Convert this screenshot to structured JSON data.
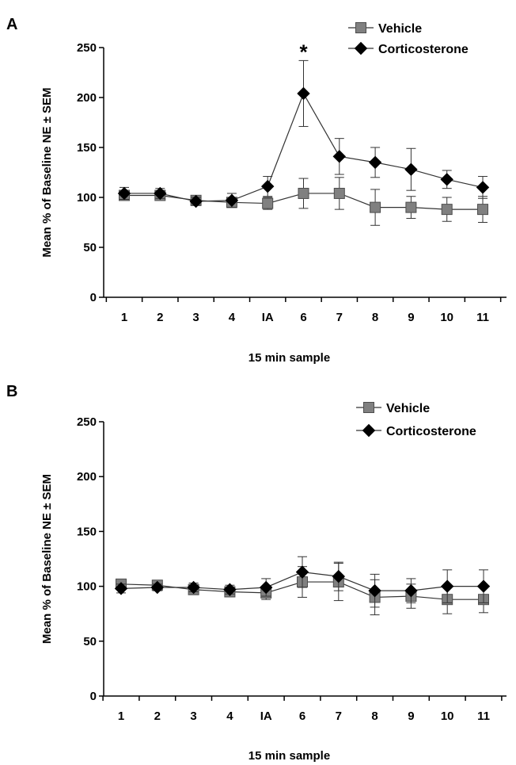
{
  "chart_data": [
    {
      "type": "line",
      "panel": "A",
      "categories": [
        "1",
        "2",
        "3",
        "4",
        "IA",
        "6",
        "7",
        "8",
        "9",
        "10",
        "11"
      ],
      "ylabel": "Mean % of Baseline NE ± SEM",
      "xlabel": "15 min sample",
      "ylim": [
        0,
        250
      ],
      "yticks": [
        0,
        50,
        100,
        150,
        200,
        250
      ],
      "legend_position": "top-right",
      "series": [
        {
          "name": "Vehicle",
          "marker": "square",
          "color": "#808080",
          "values": [
            102,
            102,
            97,
            95,
            94,
            104,
            104,
            90,
            90,
            88,
            88
          ],
          "errors": [
            4,
            4,
            4,
            5,
            6,
            15,
            16,
            18,
            11,
            12,
            13
          ]
        },
        {
          "name": "Corticosterone",
          "marker": "diamond",
          "color": "#000000",
          "values": [
            104,
            104,
            96,
            97,
            111,
            204,
            141,
            135,
            128,
            118,
            110
          ],
          "errors": [
            6,
            5,
            4,
            7,
            10,
            33,
            18,
            15,
            21,
            9,
            11
          ]
        }
      ],
      "annotations": [
        {
          "text": "*",
          "category": "6"
        }
      ]
    },
    {
      "type": "line",
      "panel": "B",
      "categories": [
        "1",
        "2",
        "3",
        "4",
        "IA",
        "6",
        "7",
        "8",
        "9",
        "10",
        "11"
      ],
      "ylabel": "Mean % of Baseline NE ± SEM",
      "xlabel": "15 min sample",
      "ylim": [
        0,
        250
      ],
      "yticks": [
        0,
        50,
        100,
        150,
        200,
        250
      ],
      "legend_position": "top-right",
      "series": [
        {
          "name": "Vehicle",
          "marker": "square",
          "color": "#808080",
          "values": [
            102,
            101,
            97,
            95,
            94,
            104,
            104,
            90,
            91,
            88,
            88
          ],
          "errors": [
            4,
            3,
            4,
            4,
            6,
            14,
            17,
            16,
            11,
            13,
            12
          ]
        },
        {
          "name": "Corticosterone",
          "marker": "diamond",
          "color": "#000000",
          "values": [
            98,
            99,
            99,
            97,
            99,
            113,
            109,
            96,
            96,
            100,
            100
          ],
          "errors": [
            4,
            3,
            4,
            4,
            8,
            14,
            13,
            15,
            11,
            15,
            15
          ]
        }
      ],
      "annotations": []
    }
  ]
}
